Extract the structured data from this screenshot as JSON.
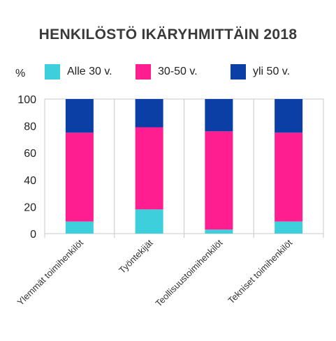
{
  "chart_data": {
    "type": "bar",
    "stacked": true,
    "title": "HENKILÖSTÖ IKÄRYHMITTÄIN 2018",
    "ylabel": "%",
    "xlabel": "",
    "ylim": [
      0,
      100
    ],
    "yticks": [
      0,
      20,
      40,
      60,
      80,
      100
    ],
    "grid": false,
    "legend_position": "top",
    "categories": [
      "Ylemmät toimihenkilöt",
      "Työntekijät",
      "Teollisuustoimihenkilöt",
      "Tekniset toimihenkilöt"
    ],
    "series": [
      {
        "name": "Alle 30 v.",
        "color": "#3dcfdc",
        "values": [
          9,
          18,
          3,
          9
        ]
      },
      {
        "name": "30-50 v.",
        "color": "#ff1e8f",
        "values": [
          66,
          61,
          73,
          66
        ]
      },
      {
        "name": "yli 50 v.",
        "color": "#0b3fa6",
        "values": [
          25,
          21,
          24,
          25
        ]
      }
    ]
  }
}
